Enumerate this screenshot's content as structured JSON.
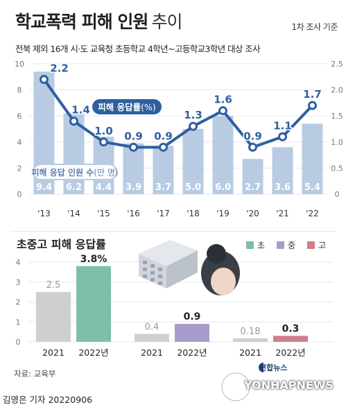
{
  "header": {
    "title_strong": "학교폭력 피해 인원",
    "title_light": "추이",
    "basis": "1차 조사 기준",
    "subtitle": "전북 제외 16개 시·도 교육청 초등학교 4학년~고등학교3학년 대상 조사"
  },
  "footer": {
    "source": "자료: 교육부",
    "byline": "김영은 기자  20220906",
    "logo_korean": "연합뉴스",
    "logo_english": "YONHAPNEWS"
  },
  "colors": {
    "bar": "#b8cbe3",
    "line": "#2f5fa0",
    "elem": "#7fbfa9",
    "middle": "#a89ccc",
    "high": "#cf7f8a",
    "old_bar": "#cfcfcf"
  },
  "chart_data": [
    {
      "type": "bar+line",
      "categories": [
        "'13",
        "'14",
        "'15",
        "'16",
        "'17",
        "'18",
        "'19",
        "'20",
        "'21",
        "'22"
      ],
      "series": [
        {
          "name": "피해 응답 인원 수",
          "unit": "만 명",
          "axis": "left",
          "type": "bar",
          "values": [
            9.4,
            6.2,
            4.4,
            3.9,
            3.7,
            5.0,
            6.0,
            2.7,
            3.6,
            5.4
          ]
        },
        {
          "name": "피해 응답률",
          "unit": "%",
          "axis": "right",
          "type": "line",
          "values": [
            2.2,
            1.4,
            1.0,
            0.9,
            0.9,
            1.3,
            1.6,
            0.9,
            1.1,
            1.7
          ]
        }
      ],
      "left_axis": {
        "ylim": [
          0,
          10
        ],
        "ticks": [
          0,
          2,
          4,
          6,
          8,
          10
        ]
      },
      "right_axis": {
        "ylim": [
          0,
          2.5
        ],
        "ticks": [
          "0",
          "0.5",
          "1.0",
          "1.5",
          "2.0",
          "2.5"
        ]
      },
      "grid": true
    },
    {
      "type": "bar",
      "title": "초중고 피해 응답률",
      "legend": [
        "초",
        "중",
        "고"
      ],
      "legend_position": "top-right",
      "ylim": [
        0,
        4
      ],
      "ticks": [
        0,
        1,
        2,
        3,
        4
      ],
      "groups": [
        {
          "name": "초",
          "categories": [
            "2021",
            "2022년"
          ],
          "values": [
            2.5,
            3.8
          ],
          "labels": [
            "2.5",
            "3.8%"
          ]
        },
        {
          "name": "중",
          "categories": [
            "2021",
            "2022년"
          ],
          "values": [
            0.4,
            0.9
          ],
          "labels": [
            "0.4",
            "0.9"
          ]
        },
        {
          "name": "고",
          "categories": [
            "2021",
            "2022년"
          ],
          "values": [
            0.18,
            0.3
          ],
          "labels": [
            "0.18",
            "0.3"
          ]
        }
      ]
    }
  ]
}
